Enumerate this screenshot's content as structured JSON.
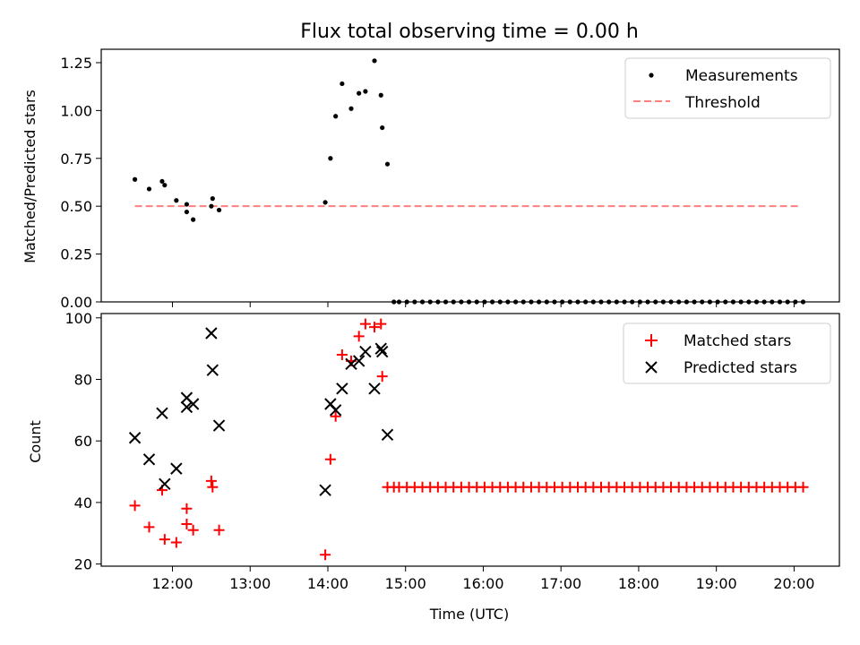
{
  "title": "Flux total observing time = 0.00 h",
  "colors": {
    "measure": "#000000",
    "threshold": "#ff7f7f",
    "matched": "#ff0000",
    "predicted": "#000000"
  },
  "chart_data": [
    {
      "type": "scatter",
      "ylabel": "Matched/Predicted stars",
      "ylim": [
        0,
        1.32
      ],
      "yticks": [
        "0.00",
        "0.25",
        "0.50",
        "0.75",
        "1.00",
        "1.25"
      ],
      "ytick_values": [
        0,
        0.25,
        0.5,
        0.75,
        1.0,
        1.25
      ],
      "legend_position": "upper right",
      "threshold": {
        "name": "Threshold",
        "value": 0.5,
        "x_start": "11:31",
        "x_end": "20:05"
      },
      "series": [
        {
          "name": "Measurements",
          "x": [
            "11:31",
            "11:42",
            "11:52",
            "11:54",
            "12:03",
            "12:11",
            "12:11",
            "12:16",
            "12:30",
            "12:31",
            "12:36",
            "13:58",
            "14:02",
            "14:06",
            "14:11",
            "14:18",
            "14:24",
            "14:29",
            "14:36",
            "14:41",
            "14:42",
            "14:46",
            "14:51",
            "14:55",
            "15:01",
            "15:07",
            "15:13",
            "15:19",
            "15:25",
            "15:31",
            "15:37",
            "15:43",
            "15:49",
            "15:55",
            "16:01",
            "16:07",
            "16:13",
            "16:19",
            "16:25",
            "16:31",
            "16:37",
            "16:43",
            "16:49",
            "16:55",
            "17:01",
            "17:07",
            "17:13",
            "17:19",
            "17:25",
            "17:31",
            "17:37",
            "17:43",
            "17:49",
            "17:55",
            "18:01",
            "18:07",
            "18:13",
            "18:19",
            "18:25",
            "18:31",
            "18:37",
            "18:43",
            "18:49",
            "18:55",
            "19:01",
            "19:07",
            "19:13",
            "19:19",
            "19:25",
            "19:31",
            "19:37",
            "19:43",
            "19:49",
            "19:55",
            "20:01",
            "20:07"
          ],
          "y": [
            0.64,
            0.59,
            0.63,
            0.61,
            0.53,
            0.51,
            0.47,
            0.43,
            0.5,
            0.54,
            0.48,
            0.52,
            0.75,
            0.97,
            1.14,
            1.01,
            1.09,
            1.1,
            1.26,
            1.08,
            0.91,
            0.72,
            0,
            0,
            0,
            0,
            0,
            0,
            0,
            0,
            0,
            0,
            0,
            0,
            0,
            0,
            0,
            0,
            0,
            0,
            0,
            0,
            0,
            0,
            0,
            0,
            0,
            0,
            0,
            0,
            0,
            0,
            0,
            0,
            0,
            0,
            0,
            0,
            0,
            0,
            0,
            0,
            0,
            0,
            0,
            0,
            0,
            0,
            0,
            0,
            0,
            0,
            0,
            0,
            0,
            0
          ]
        }
      ]
    },
    {
      "type": "scatter",
      "xlabel": "Time (UTC)",
      "ylabel": "Count",
      "ylim": [
        19.3,
        101.4
      ],
      "yticks": [
        "20",
        "40",
        "60",
        "80",
        "100"
      ],
      "ytick_values": [
        20,
        40,
        60,
        80,
        100
      ],
      "xticks": [
        "12:00",
        "13:00",
        "14:00",
        "15:00",
        "16:00",
        "17:00",
        "18:00",
        "19:00",
        "20:00"
      ],
      "xlim": [
        "11:05",
        "20:35"
      ],
      "legend_position": "upper right",
      "series": [
        {
          "name": "Matched stars",
          "x": [
            "11:31",
            "11:42",
            "11:52",
            "11:54",
            "12:03",
            "12:11",
            "12:11",
            "12:16",
            "12:30",
            "12:31",
            "12:36",
            "13:58",
            "14:02",
            "14:06",
            "14:11",
            "14:18",
            "14:24",
            "14:29",
            "14:36",
            "14:41",
            "14:42",
            "14:46",
            "14:51",
            "14:55",
            "15:01",
            "15:07",
            "15:13",
            "15:19",
            "15:25",
            "15:31",
            "15:37",
            "15:43",
            "15:49",
            "15:55",
            "16:01",
            "16:07",
            "16:13",
            "16:19",
            "16:25",
            "16:31",
            "16:37",
            "16:43",
            "16:49",
            "16:55",
            "17:01",
            "17:07",
            "17:13",
            "17:19",
            "17:25",
            "17:31",
            "17:37",
            "17:43",
            "17:49",
            "17:55",
            "18:01",
            "18:07",
            "18:13",
            "18:19",
            "18:25",
            "18:31",
            "18:37",
            "18:43",
            "18:49",
            "18:55",
            "19:01",
            "19:07",
            "19:13",
            "19:19",
            "19:25",
            "19:31",
            "19:37",
            "19:43",
            "19:49",
            "19:55",
            "20:01",
            "20:07"
          ],
          "y": [
            39,
            32,
            44,
            28,
            27,
            38,
            33,
            31,
            47,
            45,
            31,
            23,
            54,
            68,
            88,
            86,
            94,
            98,
            97,
            98,
            81,
            45,
            45,
            45,
            45,
            45,
            45,
            45,
            45,
            45,
            45,
            45,
            45,
            45,
            45,
            45,
            45,
            45,
            45,
            45,
            45,
            45,
            45,
            45,
            45,
            45,
            45,
            45,
            45,
            45,
            45,
            45,
            45,
            45,
            45,
            45,
            45,
            45,
            45,
            45,
            45,
            45,
            45,
            45,
            45,
            45,
            45,
            45,
            45,
            45,
            45,
            45,
            45,
            45,
            45,
            45
          ]
        },
        {
          "name": "Predicted stars",
          "x": [
            "11:31",
            "11:42",
            "11:52",
            "11:54",
            "12:03",
            "12:11",
            "12:11",
            "12:16",
            "12:30",
            "12:31",
            "12:36",
            "13:58",
            "14:02",
            "14:06",
            "14:11",
            "14:18",
            "14:24",
            "14:29",
            "14:36",
            "14:41",
            "14:42",
            "14:46"
          ],
          "y": [
            61,
            54,
            69,
            46,
            51,
            74,
            71,
            72,
            95,
            83,
            65,
            44,
            72,
            70,
            77,
            85,
            86,
            89,
            77,
            90,
            89,
            62
          ]
        }
      ]
    }
  ]
}
